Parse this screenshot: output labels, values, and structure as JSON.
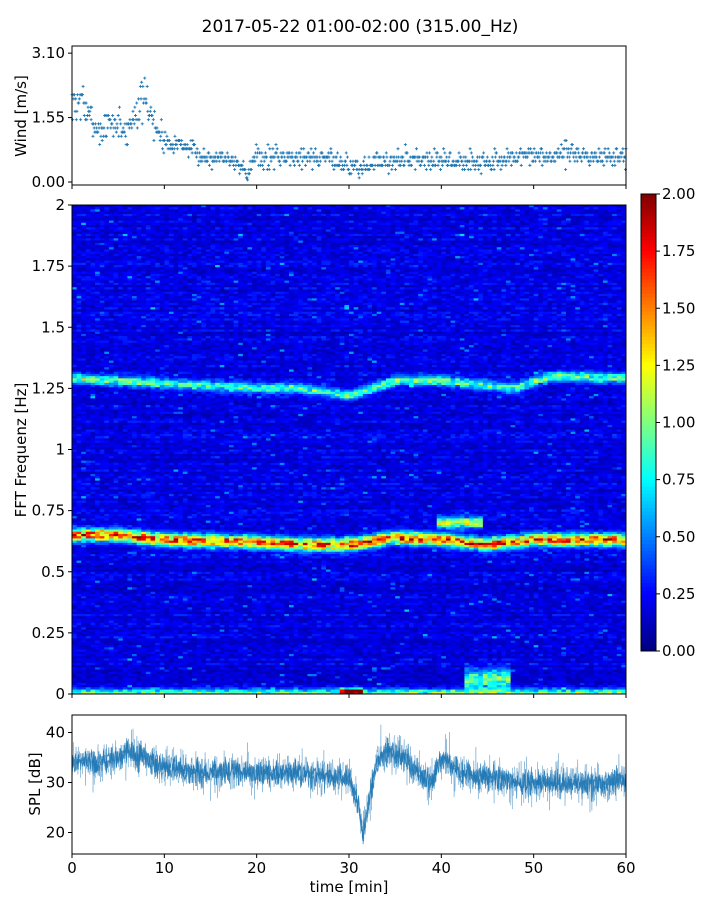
{
  "title": "2017-05-22 01:00-02:00 (315.00_Hz)",
  "chart_data": [
    {
      "panel": "wind",
      "type": "scatter",
      "ylabel": "Wind [m/s]",
      "ylim": [
        0,
        3.2
      ],
      "yticks": [
        "0.00",
        "1.55",
        "3.10"
      ],
      "xlim": [
        0,
        60
      ],
      "marker": "+",
      "color": "#1f77b4",
      "quantization_step": 0.1,
      "series": [
        {
          "x": [
            0,
            1,
            2,
            3,
            4,
            5,
            6,
            7,
            8,
            9,
            10,
            12,
            14,
            16,
            18,
            19,
            20,
            22,
            25,
            28,
            30,
            31,
            33,
            35,
            38,
            40,
            42,
            44,
            46,
            48,
            50,
            52,
            54,
            56,
            58,
            60
          ],
          "y": [
            1.8,
            2.0,
            1.5,
            1.2,
            1.4,
            1.4,
            1.2,
            1.8,
            2.0,
            1.3,
            1.0,
            0.9,
            0.6,
            0.6,
            0.5,
            0.2,
            0.6,
            0.6,
            0.6,
            0.6,
            0.4,
            0.3,
            0.5,
            0.5,
            0.6,
            0.5,
            0.5,
            0.5,
            0.5,
            0.6,
            0.6,
            0.6,
            0.7,
            0.6,
            0.6,
            0.6
          ],
          "spread": [
            1.0,
            1.0,
            0.9,
            0.7,
            0.7,
            0.9,
            0.7,
            1.0,
            0.9,
            0.7,
            0.6,
            0.5,
            0.5,
            0.4,
            0.4,
            0.4,
            0.9,
            0.5,
            0.5,
            0.6,
            0.5,
            0.5,
            0.6,
            0.5,
            0.6,
            0.5,
            0.5,
            0.5,
            0.5,
            0.5,
            0.5,
            0.5,
            0.7,
            0.5,
            0.5,
            0.5
          ]
        }
      ]
    },
    {
      "panel": "spectrogram",
      "type": "heatmap",
      "ylabel": "FFT Frequenz [Hz]",
      "ylim": [
        0,
        2
      ],
      "yticks": [
        "0",
        "0.25",
        "0.5",
        "0.75",
        "1",
        "1.25",
        "1.5",
        "1.75",
        "2"
      ],
      "xlim": [
        0,
        60
      ],
      "colormap": "jet",
      "colorbar": {
        "min": 0,
        "max": 2,
        "ticks": [
          "0.00",
          "0.25",
          "0.50",
          "0.75",
          "1.00",
          "1.25",
          "1.50",
          "1.75",
          "2.00"
        ]
      },
      "background_level": 0.2,
      "features": [
        {
          "name": "main band",
          "freq_path": [
            [
              0,
              0.65
            ],
            [
              5,
              0.65
            ],
            [
              10,
              0.63
            ],
            [
              20,
              0.62
            ],
            [
              25,
              0.61
            ],
            [
              30,
              0.61
            ],
            [
              35,
              0.64
            ],
            [
              40,
              0.63
            ],
            [
              45,
              0.61
            ],
            [
              50,
              0.63
            ],
            [
              55,
              0.63
            ],
            [
              60,
              0.63
            ]
          ],
          "level": 1.6,
          "width": 0.025
        },
        {
          "name": "upper band",
          "freq_path": [
            [
              0,
              1.29
            ],
            [
              10,
              1.27
            ],
            [
              20,
              1.25
            ],
            [
              25,
              1.25
            ],
            [
              30,
              1.22
            ],
            [
              35,
              1.28
            ],
            [
              40,
              1.28
            ],
            [
              48,
              1.25
            ],
            [
              52,
              1.3
            ],
            [
              60,
              1.29
            ]
          ],
          "level": 0.85,
          "width": 0.02
        },
        {
          "name": "low band",
          "freq_path": [
            [
              0,
              0.005
            ],
            [
              60,
              0.005
            ]
          ],
          "level": 0.8,
          "width": 0.015
        },
        {
          "name": "patch 40-44 min",
          "freq_path": [
            [
              40,
              0.7
            ],
            [
              44,
              0.7
            ]
          ],
          "level": 1.2,
          "width": 0.02
        },
        {
          "name": "patch 30-31 min",
          "freq_path": [
            [
              29.8,
              0.01
            ],
            [
              30.8,
              0.01
            ]
          ],
          "level": 2.0,
          "width": 0.01
        },
        {
          "name": "patch 43-47 min",
          "freq_path": [
            [
              43,
              0.06
            ],
            [
              47,
              0.06
            ]
          ],
          "level": 0.9,
          "width": 0.04
        }
      ]
    },
    {
      "panel": "spl",
      "type": "line",
      "ylabel": "SPL [dB]",
      "xlabel": "time [min]",
      "ylim": [
        15.7,
        43.5
      ],
      "yticks": [
        "20",
        "30",
        "40"
      ],
      "xlim": [
        0,
        60
      ],
      "xticks": [
        "0",
        "10",
        "20",
        "30",
        "40",
        "50",
        "60"
      ],
      "color": "#1f77b4",
      "series": [
        {
          "x": [
            0,
            2,
            4,
            6,
            8,
            10,
            12,
            14,
            16,
            18,
            20,
            22,
            24,
            26,
            28,
            30,
            31,
            31.5,
            32,
            33,
            34,
            36,
            38,
            39,
            40,
            42,
            44,
            46,
            48,
            50,
            52,
            54,
            56,
            58,
            60
          ],
          "y": [
            34,
            34.5,
            34,
            36,
            35,
            33,
            32.5,
            32,
            32,
            32.5,
            32,
            32,
            32,
            31.5,
            31,
            31,
            26,
            19,
            25,
            34,
            36,
            35,
            31,
            30,
            35,
            32,
            31,
            31,
            30,
            30,
            30,
            30,
            29.5,
            30,
            31
          ],
          "band": 3.2
        }
      ]
    }
  ]
}
